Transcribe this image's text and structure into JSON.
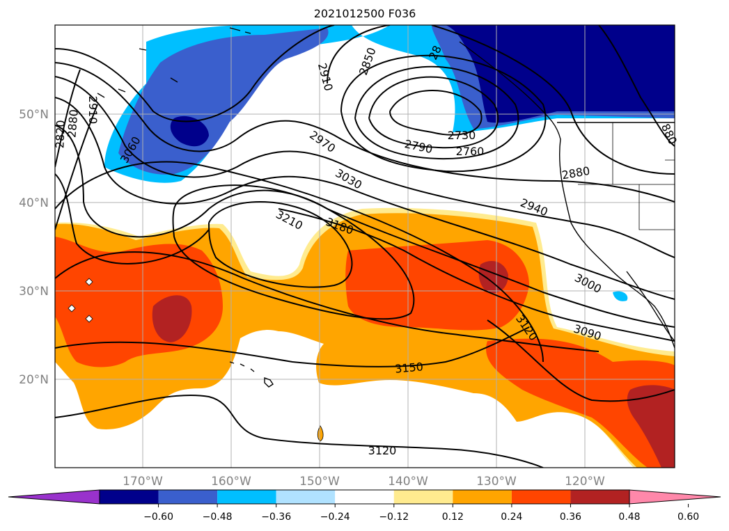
{
  "title": "2021012500 F036",
  "map": {
    "lat_labels": [
      "50°N",
      "40°N",
      "30°N",
      "20°N"
    ],
    "lon_labels": [
      "170°W",
      "160°W",
      "150°W",
      "140°W",
      "130°W",
      "120°W"
    ],
    "region": "North-East Pacific / western North America",
    "field": "filled anomaly with height contours"
  },
  "contour_labels": [
    {
      "id": "c2820",
      "text": "2820"
    },
    {
      "id": "c2880w",
      "text": "2880"
    },
    {
      "id": "c2910w",
      "text": "2910"
    },
    {
      "id": "c2910n",
      "text": "2910"
    },
    {
      "id": "c2850",
      "text": "2850"
    },
    {
      "id": "c28xx",
      "text": "28"
    },
    {
      "id": "c3060",
      "text": "3060"
    },
    {
      "id": "c2970",
      "text": "2970"
    },
    {
      "id": "c2730",
      "text": "2730"
    },
    {
      "id": "c2790",
      "text": "2790"
    },
    {
      "id": "c2760",
      "text": "2760"
    },
    {
      "id": "c3030",
      "text": "3030"
    },
    {
      "id": "c2880e",
      "text": "2880"
    },
    {
      "id": "c880",
      "text": "880"
    },
    {
      "id": "c2940",
      "text": "2940"
    },
    {
      "id": "c3210",
      "text": "3210"
    },
    {
      "id": "c3180",
      "text": "3180"
    },
    {
      "id": "c3000",
      "text": "3000"
    },
    {
      "id": "c3120a",
      "text": "3120"
    },
    {
      "id": "c3090",
      "text": "3090"
    },
    {
      "id": "c3150",
      "text": "3150"
    },
    {
      "id": "c3120b",
      "text": "3120"
    }
  ],
  "colorbar": {
    "ticks": [
      "−0.60",
      "−0.48",
      "−0.36",
      "−0.24",
      "−0.12",
      "0.12",
      "0.24",
      "0.36",
      "0.48",
      "0.60"
    ],
    "colors": [
      "#9932cc",
      "#00008b",
      "#3a5fcd",
      "#00bfff",
      "#b0e2ff",
      "#ffffff",
      "#ffeb8f",
      "#ffa500",
      "#ff4500",
      "#b22222",
      "#ff88aa"
    ]
  },
  "colors": {
    "deep_blue": "#00008b",
    "royal_blue": "#3a5fcd",
    "sky_blue": "#00bfff",
    "light_yellow": "#ffeb8f",
    "orange": "#ffa500",
    "red_orange": "#ff4500",
    "firebrick": "#b22222"
  }
}
